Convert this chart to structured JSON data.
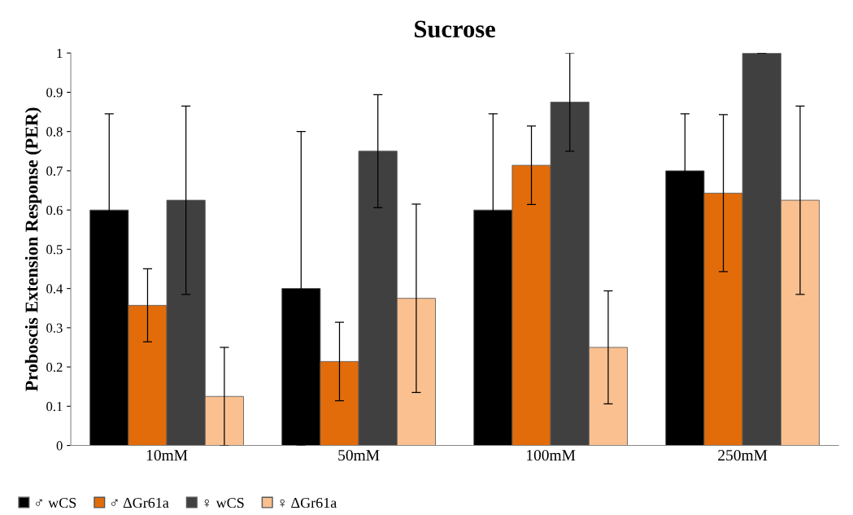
{
  "chart_data": {
    "type": "bar",
    "title": "Sucrose",
    "ylabel": "Proboscis Extension Response (PER)",
    "categories": [
      "10mM",
      "50mM",
      "100mM",
      "250mM"
    ],
    "series": [
      {
        "name": "♂ wCS",
        "color": "#000000",
        "values": [
          0.6,
          0.4,
          0.6,
          0.7
        ],
        "errors": [
          0.245,
          0.4,
          0.245,
          0.145
        ]
      },
      {
        "name": "♂ ΔGr61a",
        "color": "#e36c0a",
        "values": [
          0.357,
          0.214,
          0.714,
          0.643
        ],
        "errors": [
          0.093,
          0.1,
          0.1,
          0.2
        ]
      },
      {
        "name": "♀ wCS",
        "color": "#404040",
        "values": [
          0.625,
          0.75,
          0.875,
          1.0
        ],
        "errors": [
          0.24,
          0.144,
          0.125,
          0
        ]
      },
      {
        "name": "♀ ΔGr61a",
        "color": "#fac090",
        "values": [
          0.125,
          0.375,
          0.25,
          0.625
        ],
        "errors": [
          0.125,
          0.24,
          0.144,
          0.24
        ]
      }
    ],
    "ylim": [
      0,
      1
    ],
    "yticks": [
      0,
      0.1,
      0.2,
      0.3,
      0.4,
      0.5,
      0.6,
      0.7,
      0.8,
      0.9,
      1
    ],
    "grid": false,
    "legend": "bottom left"
  }
}
